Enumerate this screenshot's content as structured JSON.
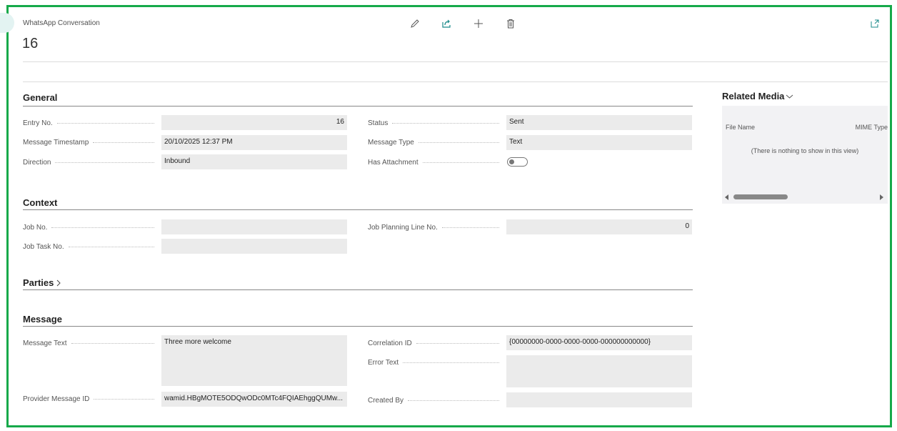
{
  "header": {
    "caption": "WhatsApp Conversation",
    "title": "16",
    "actions": [
      "edit-icon",
      "share-icon",
      "new-icon",
      "delete-icon"
    ],
    "popout": "open-in-new-window-icon"
  },
  "general": {
    "title": "General",
    "entry_no": {
      "label": "Entry No.",
      "value": "16"
    },
    "timestamp": {
      "label": "Message Timestamp",
      "value": "20/10/2025 12:37 PM"
    },
    "direction": {
      "label": "Direction",
      "value": "Inbound"
    },
    "status": {
      "label": "Status",
      "value": "Sent"
    },
    "message_type": {
      "label": "Message Type",
      "value": "Text"
    },
    "has_attachment": {
      "label": "Has Attachment",
      "value": false
    }
  },
  "context": {
    "title": "Context",
    "job_no": {
      "label": "Job No.",
      "value": ""
    },
    "job_task_no": {
      "label": "Job Task No.",
      "value": ""
    },
    "job_planning_line_no": {
      "label": "Job Planning Line No.",
      "value": "0"
    }
  },
  "parties": {
    "title": "Parties"
  },
  "message": {
    "title": "Message",
    "text": {
      "label": "Message Text",
      "value": "Three more welcome"
    },
    "provider_id": {
      "label": "Provider Message ID",
      "value": "wamid.HBgMOTE5ODQwODc0MTc4FQIAEhggQUMw..."
    },
    "correlation_id": {
      "label": "Correlation ID",
      "value": "{00000000-0000-0000-0000-000000000000}"
    },
    "error_text": {
      "label": "Error Text",
      "value": ""
    },
    "created_by": {
      "label": "Created By",
      "value": ""
    }
  },
  "related_media": {
    "title": "Related Media",
    "columns": [
      "File Name",
      "MIME Type"
    ],
    "empty": "(There is nothing to show in this view)"
  },
  "colors": {
    "frame": "#16a94a",
    "field_bg": "#ebebeb",
    "accent": "#1a8a8a"
  }
}
